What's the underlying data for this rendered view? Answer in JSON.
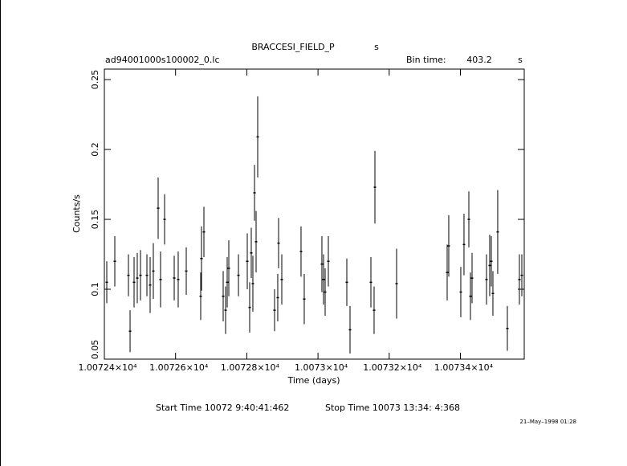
{
  "chart_data": {
    "type": "scatter",
    "title": "BRACCESI_FIELD_P",
    "title_suffix": "s",
    "file_name": "ad94001000s100002_0.lc",
    "bin_time_label": "Bin time:",
    "bin_time": "403.2",
    "bin_time_unit": "s",
    "x_label": "Time (days)",
    "y_label": "Counts/s",
    "start_time": "Start Time 10072  9:40:41:462",
    "stop_time": "Stop Time 10073 13:34: 4:368",
    "date": "21–May–1998 01:28",
    "xlim": [
      10072.4,
      10073.5793
    ],
    "ylim": [
      0.05,
      0.2575
    ],
    "xticks": [
      {
        "value": 10072.4,
        "label": "1.00724×10⁴"
      },
      {
        "value": 10072.6,
        "label": "1.00726×10⁴"
      },
      {
        "value": 10072.8,
        "label": "1.00728×10⁴"
      },
      {
        "value": 10073.0,
        "label": "1.0073×10⁴"
      },
      {
        "value": 10073.2,
        "label": "1.00732×10⁴"
      },
      {
        "value": 10073.4,
        "label": "1.00734×10⁴"
      }
    ],
    "yticks": [
      0.05,
      0.1,
      0.15,
      0.2,
      0.25
    ],
    "color": "#000000",
    "series": [
      {
        "x": [
          10072.4068,
          10072.4293,
          10072.4676,
          10072.4722,
          10072.4834,
          10072.4924,
          10072.5015,
          10072.5195,
          10072.5285,
          10072.5375,
          10072.5511,
          10072.5578,
          10072.5691,
          10072.5962,
          10072.6074,
          10072.63,
          10072.6706,
          10072.6728,
          10072.6796,
          10072.7337,
          10072.7405,
          10072.745,
          10072.7495,
          10072.7766,
          10072.8014,
          10072.8081,
          10072.8126,
          10072.8171,
          10072.8217,
          10072.8262,
          10072.8307,
          10072.878,
          10072.887,
          10072.8893,
          10072.8983,
          10072.9524,
          10072.9614,
          10073.011,
          10073.0156,
          10073.0201,
          10073.0291,
          10073.081,
          10073.09,
          10073.1486,
          10073.1576,
          10073.1599,
          10073.2208,
          10073.3628,
          10073.3673,
          10073.4011,
          10073.4101,
          10073.4237,
          10073.4282,
          10073.4327,
          10073.4733,
          10073.4823,
          10073.4868,
          10073.4913,
          10073.5048,
          10073.5319,
          10073.5657,
          10073.5725
        ],
        "values": [
          0.105,
          0.12,
          0.11,
          0.07,
          0.105,
          0.108,
          0.11,
          0.11,
          0.103,
          0.113,
          0.158,
          0.107,
          0.15,
          0.108,
          0.107,
          0.113,
          0.095,
          0.122,
          0.141,
          0.095,
          0.085,
          0.105,
          0.115,
          0.11,
          0.12,
          0.087,
          0.126,
          0.104,
          0.169,
          0.134,
          0.209,
          0.085,
          0.094,
          0.133,
          0.107,
          0.127,
          0.093,
          0.118,
          0.107,
          0.098,
          0.12,
          0.105,
          0.071,
          0.105,
          0.085,
          0.173,
          0.104,
          0.112,
          0.131,
          0.098,
          0.132,
          0.15,
          0.095,
          0.108,
          0.107,
          0.117,
          0.12,
          0.097,
          0.141,
          0.072,
          0.107,
          0.11
        ],
        "errors": [
          0.015,
          0.018,
          0.015,
          0.015,
          0.018,
          0.018,
          0.018,
          0.015,
          0.02,
          0.02,
          0.022,
          0.02,
          0.018,
          0.016,
          0.02,
          0.017,
          0.017,
          0.023,
          0.018,
          0.018,
          0.017,
          0.018,
          0.02,
          0.015,
          0.02,
          0.018,
          0.018,
          0.02,
          0.02,
          0.022,
          0.029,
          0.015,
          0.017,
          0.018,
          0.018,
          0.018,
          0.018,
          0.02,
          0.018,
          0.017,
          0.018,
          0.017,
          0.017,
          0.018,
          0.017,
          0.026,
          0.025,
          0.02,
          0.022,
          0.018,
          0.022,
          0.02,
          0.017,
          0.018,
          0.018,
          0.022,
          0.018,
          0.016,
          0.03,
          0.016,
          0.018,
          0.015
        ]
      }
    ]
  }
}
